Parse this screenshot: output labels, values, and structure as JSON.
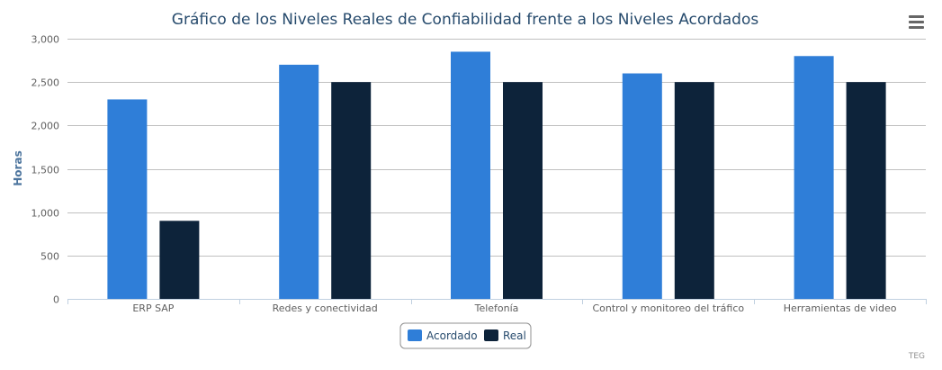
{
  "chart_data": {
    "type": "bar",
    "title": "Gráfico de los Niveles Reales de Confiabilidad frente a los Niveles Acordados",
    "xlabel": "",
    "ylabel": "Horas",
    "categories": [
      "ERP SAP",
      "Redes y conectividad",
      "Telefonía",
      "Control y monitoreo del tráfico",
      "Herramientas de video"
    ],
    "series": [
      {
        "name": "Acordado",
        "color": "#2f7ed8",
        "values": [
          2300,
          2700,
          2850,
          2600,
          2800
        ]
      },
      {
        "name": "Real",
        "color": "#0d233a",
        "values": [
          900,
          2500,
          2500,
          2500,
          2500
        ]
      }
    ],
    "ylim": [
      0,
      3000
    ],
    "yticks": [
      0,
      500,
      1000,
      1500,
      2000,
      2500,
      3000
    ],
    "ytick_labels": [
      "0",
      "500",
      "1,000",
      "1,500",
      "2,000",
      "2,500",
      "3,000"
    ],
    "grid": true,
    "legend_position": "bottom-center"
  },
  "menu_icon": "hamburger-menu-icon",
  "credit_text": "TEG"
}
